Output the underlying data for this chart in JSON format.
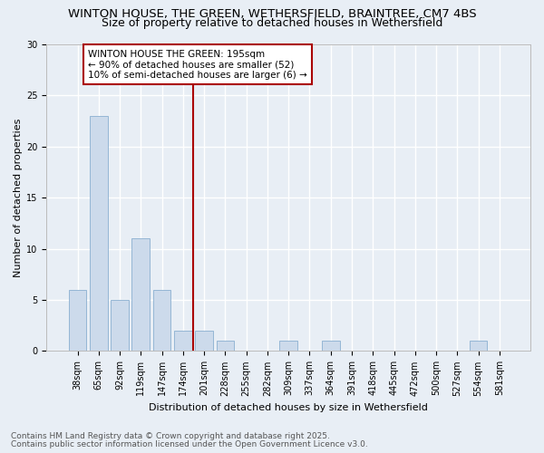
{
  "title1": "WINTON HOUSE, THE GREEN, WETHERSFIELD, BRAINTREE, CM7 4BS",
  "title2": "Size of property relative to detached houses in Wethersfield",
  "xlabel": "Distribution of detached houses by size in Wethersfield",
  "ylabel": "Number of detached properties",
  "categories": [
    "38sqm",
    "65sqm",
    "92sqm",
    "119sqm",
    "147sqm",
    "174sqm",
    "201sqm",
    "228sqm",
    "255sqm",
    "282sqm",
    "309sqm",
    "337sqm",
    "364sqm",
    "391sqm",
    "418sqm",
    "445sqm",
    "472sqm",
    "500sqm",
    "527sqm",
    "554sqm",
    "581sqm"
  ],
  "values": [
    6,
    23,
    5,
    11,
    6,
    2,
    2,
    1,
    0,
    0,
    1,
    0,
    1,
    0,
    0,
    0,
    0,
    0,
    0,
    1,
    0
  ],
  "bar_color": "#ccdaeb",
  "bar_edge_color": "#8aafd0",
  "vline_index": 6,
  "vline_color": "#aa0000",
  "annotation_text": "WINTON HOUSE THE GREEN: 195sqm\n← 90% of detached houses are smaller (52)\n10% of semi-detached houses are larger (6) →",
  "annotation_box_color": "#aa0000",
  "ylim": [
    0,
    30
  ],
  "yticks": [
    0,
    5,
    10,
    15,
    20,
    25,
    30
  ],
  "footnote1": "Contains HM Land Registry data © Crown copyright and database right 2025.",
  "footnote2": "Contains public sector information licensed under the Open Government Licence v3.0.",
  "background_color": "#e8eef5",
  "plot_bg_color": "#e8eef5",
  "grid_color": "#ffffff",
  "title1_fontsize": 9.5,
  "title2_fontsize": 9,
  "axis_fontsize": 8,
  "tick_fontsize": 7,
  "annotation_fontsize": 7.5,
  "footnote_fontsize": 6.5
}
